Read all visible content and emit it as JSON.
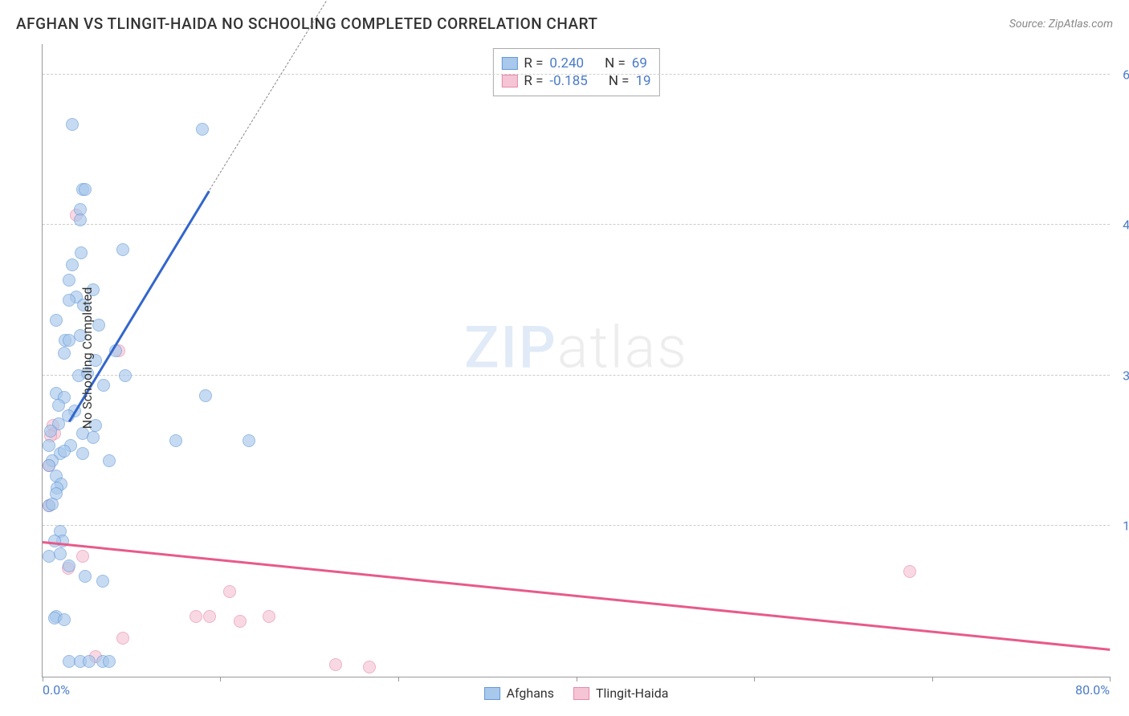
{
  "chart": {
    "type": "scatter",
    "title": "AFGHAN VS TLINGIT-HAIDA NO SCHOOLING COMPLETED CORRELATION CHART",
    "source": "Source: ZipAtlas.com",
    "y_axis_label": "No Schooling Completed",
    "xlim": [
      0,
      80
    ],
    "ylim": [
      0,
      6.3
    ],
    "y_ticks": [
      1.5,
      3.0,
      4.5,
      6.0
    ],
    "y_tick_labels": [
      "1.5%",
      "3.0%",
      "4.5%",
      "6.0%"
    ],
    "x_ticks_minor": [
      0,
      13.33,
      26.67,
      40,
      53.33,
      66.67,
      80
    ],
    "x_tick_first": "0.0%",
    "x_tick_last": "80.0%",
    "background_color": "#ffffff",
    "grid_color_dash": "#cccccc",
    "axis_color": "#999999",
    "tick_label_color": "#4a7bc8",
    "title_color": "#333333",
    "title_fontsize": 19,
    "tick_fontsize": 16,
    "watermark_text_1": "ZIP",
    "watermark_text_2": "atlas"
  },
  "series": {
    "afghans": {
      "label": "Afghans",
      "color_fill": "#a8c8ec",
      "color_stroke": "#6699d8",
      "marker_size": 16,
      "marker_opacity": 0.65,
      "points": [
        [
          2.2,
          5.5
        ],
        [
          12.0,
          5.45
        ],
        [
          3.0,
          4.85
        ],
        [
          3.2,
          4.85
        ],
        [
          2.8,
          4.65
        ],
        [
          2.8,
          4.55
        ],
        [
          2.9,
          4.22
        ],
        [
          6.0,
          4.25
        ],
        [
          2.2,
          4.1
        ],
        [
          2.0,
          3.95
        ],
        [
          3.8,
          3.85
        ],
        [
          2.5,
          3.78
        ],
        [
          2.0,
          3.75
        ],
        [
          3.1,
          3.7
        ],
        [
          1.0,
          3.55
        ],
        [
          4.2,
          3.5
        ],
        [
          2.8,
          3.4
        ],
        [
          1.7,
          3.35
        ],
        [
          2.0,
          3.35
        ],
        [
          5.5,
          3.25
        ],
        [
          1.6,
          3.22
        ],
        [
          4.0,
          3.15
        ],
        [
          6.2,
          3.0
        ],
        [
          2.7,
          3.0
        ],
        [
          4.6,
          2.9
        ],
        [
          3.4,
          3.02
        ],
        [
          12.2,
          2.8
        ],
        [
          1.0,
          2.82
        ],
        [
          1.6,
          2.78
        ],
        [
          2.4,
          2.65
        ],
        [
          1.2,
          2.7
        ],
        [
          1.9,
          2.6
        ],
        [
          1.2,
          2.52
        ],
        [
          4.0,
          2.5
        ],
        [
          3.0,
          2.42
        ],
        [
          3.8,
          2.38
        ],
        [
          10.0,
          2.35
        ],
        [
          15.5,
          2.35
        ],
        [
          0.6,
          2.45
        ],
        [
          2.1,
          2.3
        ],
        [
          1.3,
          2.22
        ],
        [
          1.6,
          2.25
        ],
        [
          0.7,
          2.15
        ],
        [
          0.5,
          2.1
        ],
        [
          3.0,
          2.22
        ],
        [
          0.5,
          2.3
        ],
        [
          5.0,
          2.15
        ],
        [
          1.0,
          2.0
        ],
        [
          1.4,
          1.92
        ],
        [
          1.1,
          1.88
        ],
        [
          1.0,
          1.82
        ],
        [
          0.5,
          1.7
        ],
        [
          0.7,
          1.72
        ],
        [
          1.3,
          1.45
        ],
        [
          1.5,
          1.35
        ],
        [
          0.9,
          1.35
        ],
        [
          0.5,
          1.2
        ],
        [
          1.3,
          1.22
        ],
        [
          2.0,
          1.1
        ],
        [
          3.2,
          1.0
        ],
        [
          4.5,
          0.95
        ],
        [
          1.0,
          0.6
        ],
        [
          0.9,
          0.58
        ],
        [
          1.6,
          0.57
        ],
        [
          2.0,
          0.15
        ],
        [
          2.8,
          0.15
        ],
        [
          4.5,
          0.15
        ],
        [
          5.0,
          0.15
        ],
        [
          3.5,
          0.15
        ]
      ],
      "trend": {
        "color": "#3366cc",
        "width": 2.5,
        "x1": 2,
        "y1": 2.55,
        "x2": 12.5,
        "y2": 4.85,
        "dash_x2": 22.5,
        "dash_y2": 7.0,
        "dash_color": "#888888"
      },
      "correlation": {
        "R": "0.240",
        "N": "69"
      }
    },
    "tlingit": {
      "label": "Tlingit-Haida",
      "color_fill": "#f5c5d5",
      "color_stroke": "#e88aa8",
      "marker_size": 16,
      "marker_opacity": 0.65,
      "points": [
        [
          2.5,
          4.6
        ],
        [
          5.7,
          3.25
        ],
        [
          0.8,
          2.5
        ],
        [
          0.9,
          2.42
        ],
        [
          0.6,
          2.4
        ],
        [
          0.5,
          2.1
        ],
        [
          0.5,
          1.7
        ],
        [
          3.0,
          1.2
        ],
        [
          1.9,
          1.08
        ],
        [
          65.0,
          1.05
        ],
        [
          14.0,
          0.85
        ],
        [
          11.5,
          0.6
        ],
        [
          12.5,
          0.6
        ],
        [
          14.8,
          0.55
        ],
        [
          17.0,
          0.6
        ],
        [
          6.0,
          0.38
        ],
        [
          4.0,
          0.2
        ],
        [
          22.0,
          0.12
        ],
        [
          24.5,
          0.1
        ]
      ],
      "trend": {
        "color": "#e85a8a",
        "width": 2.5,
        "x1": 0,
        "y1": 1.35,
        "x2": 80,
        "y2": 0.28
      },
      "correlation": {
        "R": "-0.185",
        "N": "19"
      }
    }
  },
  "legend": {
    "box_border": "#aaaaaa",
    "R_label": "R =",
    "N_label": "N ="
  }
}
